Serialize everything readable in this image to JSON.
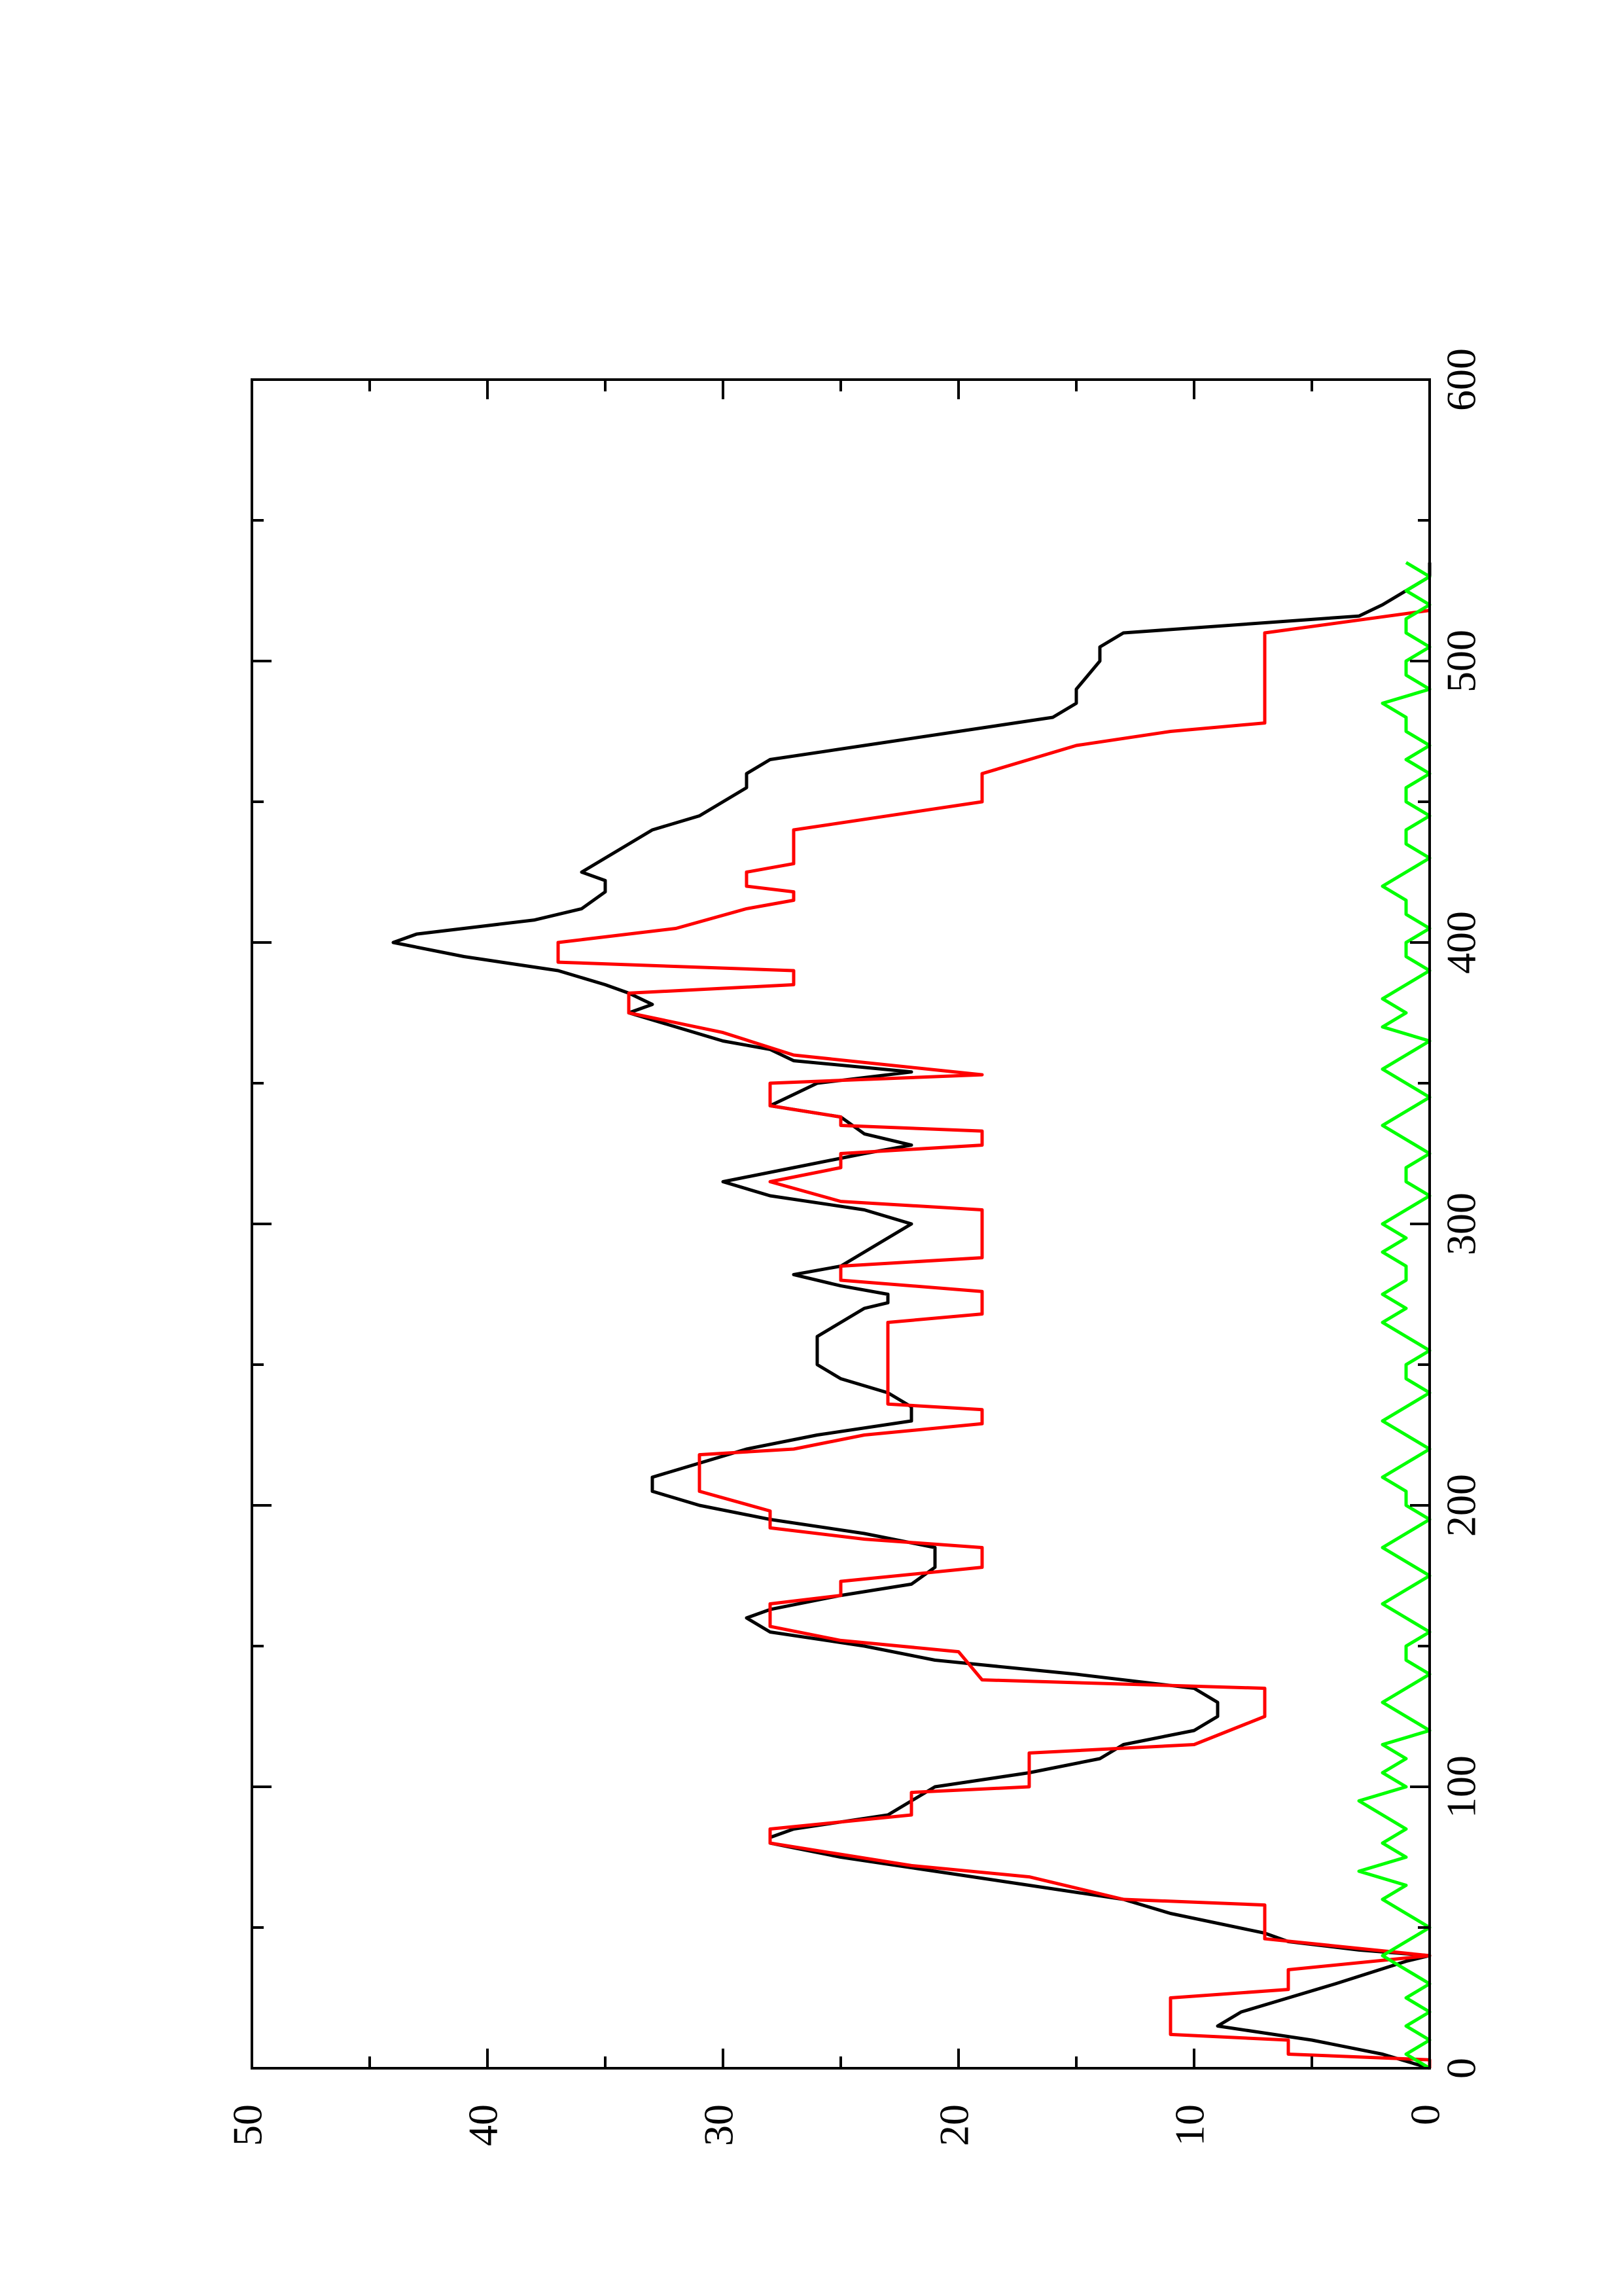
{
  "chart_data": {
    "type": "line",
    "orientation": "rotated-90-clockwise",
    "title": "",
    "xlabel": "",
    "ylabel": "",
    "xlim": [
      0,
      600
    ],
    "ylim": [
      0,
      50
    ],
    "x_ticks": [
      0,
      100,
      200,
      300,
      400,
      500,
      600
    ],
    "x_tick_labels": [
      "0",
      "100",
      "200",
      "300",
      "400",
      "500",
      "600"
    ],
    "y_ticks": [
      0,
      10,
      20,
      30,
      40,
      50
    ],
    "y_tick_labels": [
      "0",
      "10",
      "20",
      "30",
      "40",
      "50"
    ],
    "x_minor_step": 50,
    "y_minor_step": 5,
    "grid": false,
    "legend": "none",
    "series": [
      {
        "color": "#000000",
        "points": [
          [
            0,
            0
          ],
          [
            5,
            2
          ],
          [
            10,
            5
          ],
          [
            15,
            9
          ],
          [
            20,
            8
          ],
          [
            25,
            6
          ],
          [
            30,
            4
          ],
          [
            38,
            1
          ],
          [
            40,
            0
          ],
          [
            42,
            3
          ],
          [
            45,
            6
          ],
          [
            48,
            7
          ],
          [
            55,
            11
          ],
          [
            60,
            13
          ],
          [
            65,
            17
          ],
          [
            70,
            21
          ],
          [
            75,
            25
          ],
          [
            80,
            28
          ],
          [
            82,
            28
          ],
          [
            85,
            27
          ],
          [
            90,
            23
          ],
          [
            95,
            22
          ],
          [
            100,
            21
          ],
          [
            105,
            17
          ],
          [
            110,
            14
          ],
          [
            115,
            13
          ],
          [
            120,
            10
          ],
          [
            125,
            9
          ],
          [
            130,
            9
          ],
          [
            135,
            10
          ],
          [
            140,
            15
          ],
          [
            145,
            21
          ],
          [
            150,
            24
          ],
          [
            155,
            28
          ],
          [
            160,
            29
          ],
          [
            163,
            28
          ],
          [
            168,
            25
          ],
          [
            172,
            22
          ],
          [
            178,
            21
          ],
          [
            185,
            21
          ],
          [
            190,
            24
          ],
          [
            195,
            28
          ],
          [
            200,
            31
          ],
          [
            205,
            33
          ],
          [
            210,
            33
          ],
          [
            215,
            31
          ],
          [
            220,
            29
          ],
          [
            225,
            26
          ],
          [
            230,
            22
          ],
          [
            235,
            22
          ],
          [
            240,
            23
          ],
          [
            245,
            25
          ],
          [
            250,
            26
          ],
          [
            255,
            26
          ],
          [
            260,
            26
          ],
          [
            265,
            25
          ],
          [
            270,
            24
          ],
          [
            272,
            23
          ],
          [
            275,
            23
          ],
          [
            278,
            25
          ],
          [
            282,
            27
          ],
          [
            285,
            25
          ],
          [
            290,
            24
          ],
          [
            295,
            23
          ],
          [
            300,
            22
          ],
          [
            305,
            24
          ],
          [
            310,
            28
          ],
          [
            315,
            30
          ],
          [
            320,
            27
          ],
          [
            325,
            24
          ],
          [
            328,
            22
          ],
          [
            332,
            24
          ],
          [
            338,
            25
          ],
          [
            342,
            28
          ],
          [
            346,
            27
          ],
          [
            350,
            26
          ],
          [
            354,
            22
          ],
          [
            358,
            27
          ],
          [
            362,
            28
          ],
          [
            365,
            30
          ],
          [
            370,
            32
          ],
          [
            375,
            34
          ],
          [
            378,
            33
          ],
          [
            382,
            34
          ],
          [
            385,
            35
          ],
          [
            390,
            37
          ],
          [
            395,
            41
          ],
          [
            400,
            44
          ],
          [
            403,
            43
          ],
          [
            408,
            38
          ],
          [
            412,
            36
          ],
          [
            418,
            35
          ],
          [
            422,
            35
          ],
          [
            425,
            36
          ],
          [
            430,
            35
          ],
          [
            435,
            34
          ],
          [
            440,
            33
          ],
          [
            445,
            31
          ],
          [
            450,
            30
          ],
          [
            455,
            29
          ],
          [
            460,
            29
          ],
          [
            465,
            28
          ],
          [
            470,
            24
          ],
          [
            475,
            20
          ],
          [
            480,
            16
          ],
          [
            485,
            15
          ],
          [
            490,
            15
          ],
          [
            500,
            14
          ],
          [
            505,
            14
          ],
          [
            510,
            13
          ],
          [
            516,
            3
          ],
          [
            520,
            2
          ],
          [
            530,
            0
          ],
          [
            535,
            0
          ]
        ]
      },
      {
        "color": "#ff0000",
        "points": [
          [
            0,
            0
          ],
          [
            3,
            0
          ],
          [
            5,
            6
          ],
          [
            10,
            6
          ],
          [
            12,
            11
          ],
          [
            25,
            11
          ],
          [
            28,
            6
          ],
          [
            35,
            6
          ],
          [
            40,
            0
          ],
          [
            46,
            7
          ],
          [
            58,
            7
          ],
          [
            60,
            13
          ],
          [
            68,
            17
          ],
          [
            72,
            22
          ],
          [
            80,
            28
          ],
          [
            85,
            28
          ],
          [
            90,
            22
          ],
          [
            98,
            22
          ],
          [
            100,
            17
          ],
          [
            112,
            17
          ],
          [
            115,
            10
          ],
          [
            125,
            7
          ],
          [
            135,
            7
          ],
          [
            138,
            19
          ],
          [
            148,
            20
          ],
          [
            152,
            25
          ],
          [
            157,
            28
          ],
          [
            165,
            28
          ],
          [
            168,
            25
          ],
          [
            173,
            25
          ],
          [
            178,
            19
          ],
          [
            185,
            19
          ],
          [
            188,
            24
          ],
          [
            192,
            28
          ],
          [
            198,
            28
          ],
          [
            205,
            31
          ],
          [
            218,
            31
          ],
          [
            220,
            27
          ],
          [
            225,
            24
          ],
          [
            229,
            19
          ],
          [
            234,
            19
          ],
          [
            236,
            23
          ],
          [
            265,
            23
          ],
          [
            268,
            19
          ],
          [
            276,
            19
          ],
          [
            280,
            25
          ],
          [
            285,
            25
          ],
          [
            288,
            19
          ],
          [
            305,
            19
          ],
          [
            308,
            25
          ],
          [
            315,
            28
          ],
          [
            320,
            25
          ],
          [
            325,
            25
          ],
          [
            328,
            19
          ],
          [
            333,
            19
          ],
          [
            335,
            25
          ],
          [
            338,
            25
          ],
          [
            342,
            28
          ],
          [
            350,
            28
          ],
          [
            353,
            19
          ],
          [
            360,
            27
          ],
          [
            368,
            30
          ],
          [
            375,
            34
          ],
          [
            382,
            34
          ],
          [
            385,
            27
          ],
          [
            390,
            27
          ],
          [
            393,
            37
          ],
          [
            400,
            37
          ],
          [
            405,
            32
          ],
          [
            412,
            29
          ],
          [
            415,
            27
          ],
          [
            418,
            27
          ],
          [
            420,
            29
          ],
          [
            425,
            29
          ],
          [
            428,
            27
          ],
          [
            438,
            27
          ],
          [
            440,
            27
          ],
          [
            450,
            19
          ],
          [
            460,
            19
          ],
          [
            465,
            17
          ],
          [
            470,
            15
          ],
          [
            475,
            11
          ],
          [
            478,
            7
          ],
          [
            510,
            7
          ],
          [
            518,
            0
          ]
        ]
      },
      {
        "color": "#00ff00",
        "points": [
          [
            0,
            0
          ],
          [
            5,
            1
          ],
          [
            10,
            0
          ],
          [
            15,
            1
          ],
          [
            20,
            0
          ],
          [
            25,
            1
          ],
          [
            30,
            0
          ],
          [
            35,
            1
          ],
          [
            40,
            2
          ],
          [
            45,
            1
          ],
          [
            50,
            0
          ],
          [
            55,
            1
          ],
          [
            60,
            2
          ],
          [
            65,
            1
          ],
          [
            70,
            3
          ],
          [
            75,
            1
          ],
          [
            80,
            2
          ],
          [
            85,
            1
          ],
          [
            90,
            2
          ],
          [
            95,
            3
          ],
          [
            100,
            1
          ],
          [
            105,
            2
          ],
          [
            110,
            1
          ],
          [
            115,
            2
          ],
          [
            120,
            0
          ],
          [
            125,
            1
          ],
          [
            130,
            2
          ],
          [
            135,
            1
          ],
          [
            140,
            0
          ],
          [
            145,
            1
          ],
          [
            150,
            1
          ],
          [
            155,
            0
          ],
          [
            160,
            1
          ],
          [
            165,
            2
          ],
          [
            170,
            1
          ],
          [
            175,
            0
          ],
          [
            180,
            1
          ],
          [
            185,
            2
          ],
          [
            190,
            1
          ],
          [
            195,
            0
          ],
          [
            200,
            1
          ],
          [
            205,
            1
          ],
          [
            210,
            2
          ],
          [
            215,
            1
          ],
          [
            220,
            0
          ],
          [
            225,
            1
          ],
          [
            230,
            2
          ],
          [
            235,
            1
          ],
          [
            240,
            0
          ],
          [
            245,
            1
          ],
          [
            250,
            1
          ],
          [
            255,
            0
          ],
          [
            260,
            1
          ],
          [
            265,
            2
          ],
          [
            270,
            1
          ],
          [
            275,
            2
          ],
          [
            280,
            1
          ],
          [
            285,
            1
          ],
          [
            290,
            2
          ],
          [
            295,
            1
          ],
          [
            300,
            2
          ],
          [
            305,
            1
          ],
          [
            310,
            0
          ],
          [
            315,
            1
          ],
          [
            320,
            1
          ],
          [
            325,
            0
          ],
          [
            330,
            1
          ],
          [
            335,
            2
          ],
          [
            340,
            1
          ],
          [
            345,
            0
          ],
          [
            350,
            1
          ],
          [
            355,
            2
          ],
          [
            360,
            1
          ],
          [
            365,
            0
          ],
          [
            370,
            2
          ],
          [
            375,
            1
          ],
          [
            380,
            2
          ],
          [
            385,
            1
          ],
          [
            390,
            0
          ],
          [
            395,
            1
          ],
          [
            400,
            1
          ],
          [
            405,
            0
          ],
          [
            410,
            1
          ],
          [
            415,
            1
          ],
          [
            420,
            2
          ],
          [
            425,
            1
          ],
          [
            430,
            0
          ],
          [
            435,
            1
          ],
          [
            440,
            1
          ],
          [
            445,
            0
          ],
          [
            450,
            1
          ],
          [
            455,
            1
          ],
          [
            460,
            0
          ],
          [
            465,
            1
          ],
          [
            470,
            0
          ],
          [
            475,
            1
          ],
          [
            480,
            1
          ],
          [
            485,
            2
          ],
          [
            490,
            0
          ],
          [
            495,
            1
          ],
          [
            500,
            1
          ],
          [
            505,
            0
          ],
          [
            510,
            1
          ],
          [
            515,
            1
          ],
          [
            520,
            0
          ],
          [
            525,
            1
          ],
          [
            530,
            0
          ],
          [
            535,
            1
          ]
        ]
      }
    ]
  }
}
